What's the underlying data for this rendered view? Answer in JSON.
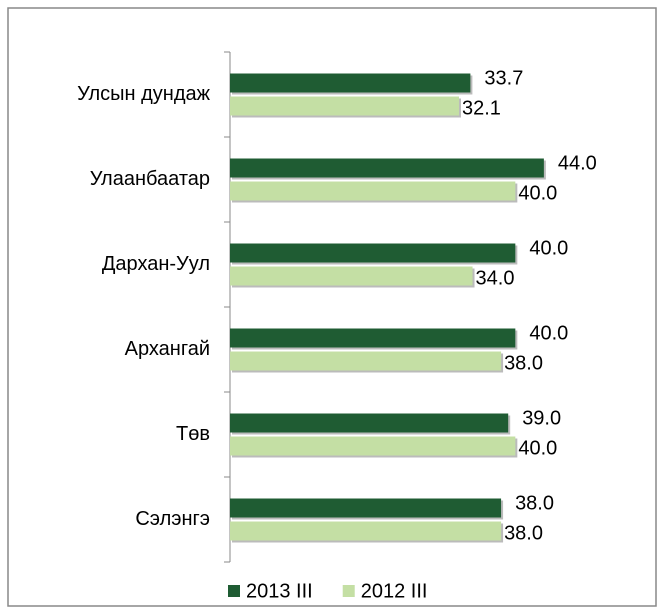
{
  "chart_data": {
    "type": "bar",
    "orientation": "horizontal",
    "categories": [
      "Улсын дундаж",
      "Улаанбаатар",
      "Дархан-Уул",
      "Архангай",
      "Төв",
      "Сэлэнгэ"
    ],
    "series": [
      {
        "name": "2013 III",
        "color": "#1f5c33",
        "values": [
          33.7,
          44,
          40,
          40,
          39,
          38
        ],
        "value_labels": [
          "33.7",
          "44.0",
          "40.0",
          "40.0",
          "39.0",
          "38.0"
        ]
      },
      {
        "name": "2012 III",
        "color": "#c4dfa4",
        "values": [
          32.1,
          40,
          34,
          38,
          40,
          38
        ],
        "value_labels": [
          "32.1",
          "40.0",
          "34.0",
          "38.0",
          "40.0",
          "38.0"
        ]
      }
    ],
    "xlim": [
      0,
      60
    ],
    "legend": "bottom"
  }
}
